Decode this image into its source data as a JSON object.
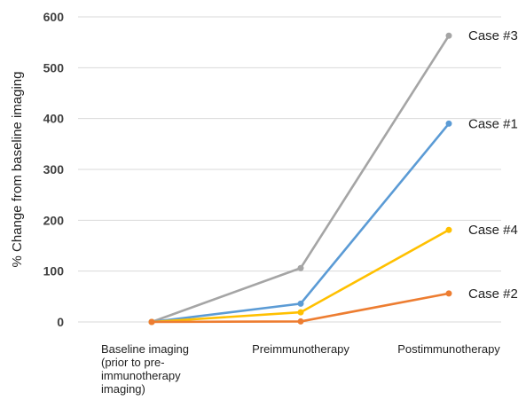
{
  "chart_data": {
    "type": "line",
    "title": "",
    "ylabel": "% Change from baseline imaging",
    "xlabel": "",
    "ylim": [
      0,
      600
    ],
    "yticks": [
      0,
      100,
      200,
      300,
      400,
      500,
      600
    ],
    "grid": true,
    "categories": [
      [
        "Baseline imaging",
        "(prior to pre-",
        "immunotherapy",
        "imaging)"
      ],
      [
        "Preimmunotherapy"
      ],
      [
        "Postimmunotherapy"
      ]
    ],
    "series": [
      {
        "name": "Case #3",
        "color": "#a5a5a5",
        "values": [
          0,
          106,
          563
        ]
      },
      {
        "name": "Case #1",
        "color": "#5b9bd5",
        "values": [
          0,
          36,
          390
        ]
      },
      {
        "name": "Case #4",
        "color": "#ffc000",
        "values": [
          0,
          19,
          181
        ]
      },
      {
        "name": "Case #2",
        "color": "#ed7d31",
        "values": [
          0,
          1,
          56
        ]
      }
    ]
  }
}
